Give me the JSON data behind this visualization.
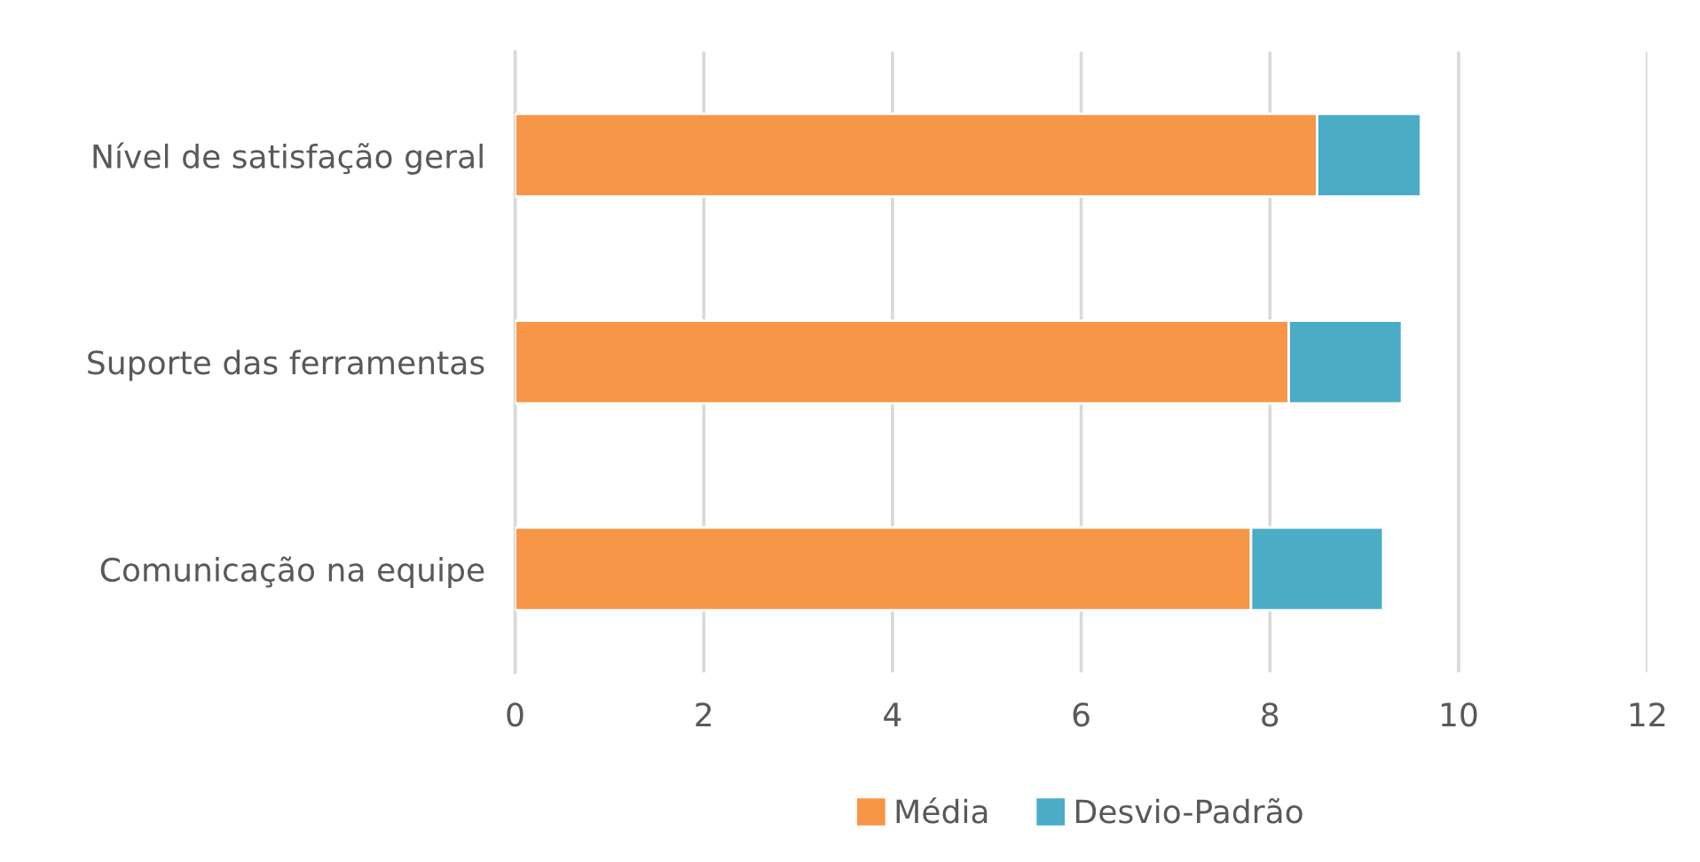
{
  "chart_data": {
    "type": "bar",
    "orientation": "horizontal",
    "stacked": true,
    "categories": [
      "Nível de satisfação geral",
      "Suporte das ferramentas",
      "Comunicação na equipe"
    ],
    "series": [
      {
        "name": "Média",
        "color": "#f79646",
        "values": [
          8.5,
          8.2,
          7.8
        ]
      },
      {
        "name": "Desvio-Padrão",
        "color": "#4bacc6",
        "values": [
          1.1,
          1.2,
          1.4
        ]
      }
    ],
    "xlim": [
      0,
      12
    ],
    "xticks": [
      0,
      2,
      4,
      6,
      8,
      10,
      12
    ],
    "grid": "x",
    "legend": "bottom"
  }
}
